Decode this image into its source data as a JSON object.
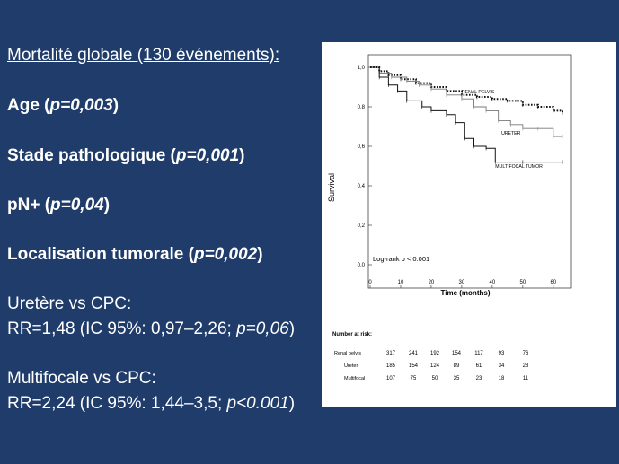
{
  "slide": {
    "heading": "Mortalité globale (130 événements):",
    "age": {
      "label": "Age (",
      "p": "p=0,003",
      "close": ")"
    },
    "stade": {
      "label": "Stade pathologique (",
      "p": "p=0,001",
      "close": ")"
    },
    "pn": {
      "label": "pN+ (",
      "p": "p=0,04",
      "close": ")"
    },
    "loc": {
      "label": "Localisation tumorale (",
      "p": "p=0,002",
      "close": ")"
    },
    "ureter_title": "Uretère vs CPC:",
    "ureter_rr": "RR=1,48 (IC 95%: 0,97–2,26; ",
    "ureter_p": "p=0,06",
    "ureter_close": ")",
    "multi_title": "Multifocale vs CPC:",
    "multi_rr": "RR=2,24 (IC 95%: 1,44–3,5; ",
    "multi_p": "p<0.001",
    "multi_close": ")"
  },
  "chart_data": {
    "type": "line",
    "ylabel": "Survival",
    "xlabel": "Time (months)",
    "xlim": [
      0,
      63
    ],
    "ylim": [
      0,
      1.0
    ],
    "x_ticks": [
      "0",
      "10",
      "20",
      "30",
      "40",
      "50",
      "60"
    ],
    "y_ticks": [
      "0,0",
      "0,2",
      "0,4",
      "0,6",
      "0,8",
      "1,0"
    ],
    "annotation": "Log-rank p < 0.001",
    "series": [
      {
        "name": "RENAL PELVIS",
        "style": "dotted",
        "points": [
          [
            0,
            1.0
          ],
          [
            3,
            0.98
          ],
          [
            6,
            0.96
          ],
          [
            10,
            0.94
          ],
          [
            15,
            0.92
          ],
          [
            20,
            0.9
          ],
          [
            25,
            0.88
          ],
          [
            30,
            0.86
          ],
          [
            35,
            0.85
          ],
          [
            40,
            0.84
          ],
          [
            45,
            0.83
          ],
          [
            50,
            0.81
          ],
          [
            55,
            0.8
          ],
          [
            60,
            0.78
          ],
          [
            63,
            0.77
          ]
        ]
      },
      {
        "name": "URETER",
        "style": "censored",
        "points": [
          [
            0,
            1.0
          ],
          [
            3,
            0.97
          ],
          [
            7,
            0.95
          ],
          [
            12,
            0.93
          ],
          [
            16,
            0.91
          ],
          [
            20,
            0.89
          ],
          [
            25,
            0.86
          ],
          [
            30,
            0.84
          ],
          [
            34,
            0.8
          ],
          [
            38,
            0.78
          ],
          [
            42,
            0.73
          ],
          [
            46,
            0.71
          ],
          [
            50,
            0.69
          ],
          [
            55,
            0.69
          ],
          [
            60,
            0.65
          ],
          [
            63,
            0.65
          ]
        ]
      },
      {
        "name": "MULTIFOCAL TUMOR",
        "style": "solid",
        "points": [
          [
            0,
            1.0
          ],
          [
            3,
            0.95
          ],
          [
            6,
            0.91
          ],
          [
            9,
            0.88
          ],
          [
            12,
            0.83
          ],
          [
            17,
            0.8
          ],
          [
            20,
            0.78
          ],
          [
            25,
            0.76
          ],
          [
            28,
            0.72
          ],
          [
            31,
            0.64
          ],
          [
            34,
            0.6
          ],
          [
            38,
            0.59
          ],
          [
            41,
            0.52
          ],
          [
            50,
            0.52
          ],
          [
            63,
            0.52
          ]
        ]
      }
    ],
    "risk_table": {
      "title": "Number at risk:",
      "rows": [
        {
          "label": "Renal pelvis",
          "values": [
            "317",
            "241",
            "192",
            "154",
            "117",
            "93",
            "76"
          ]
        },
        {
          "label": "Ureter",
          "values": [
            "185",
            "154",
            "124",
            "89",
            "61",
            "34",
            "28"
          ]
        },
        {
          "label": "Multifocal",
          "values": [
            "107",
            "75",
            "50",
            "35",
            "23",
            "18",
            "11"
          ]
        }
      ]
    }
  }
}
